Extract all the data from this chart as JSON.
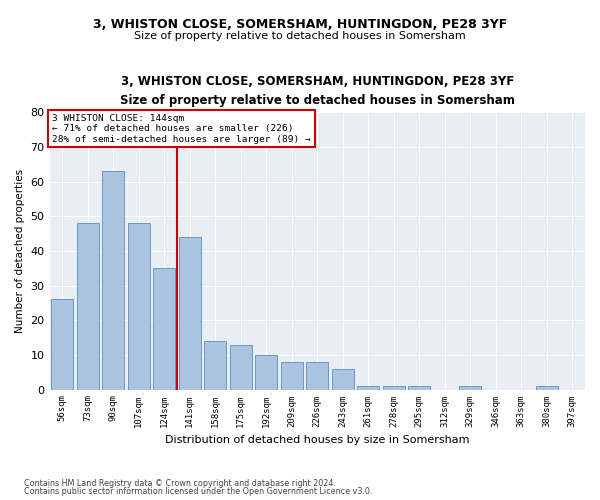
{
  "title1": "3, WHISTON CLOSE, SOMERSHAM, HUNTINGDON, PE28 3YF",
  "title2": "Size of property relative to detached houses in Somersham",
  "xlabel": "Distribution of detached houses by size in Somersham",
  "ylabel": "Number of detached properties",
  "footer1": "Contains HM Land Registry data © Crown copyright and database right 2024.",
  "footer2": "Contains public sector information licensed under the Open Government Licence v3.0.",
  "property_label": "3 WHISTON CLOSE: 144sqm",
  "annotation_line1": "← 71% of detached houses are smaller (226)",
  "annotation_line2": "28% of semi-detached houses are larger (89) →",
  "categories": [
    "56sqm",
    "73sqm",
    "90sqm",
    "107sqm",
    "124sqm",
    "141sqm",
    "158sqm",
    "175sqm",
    "192sqm",
    "209sqm",
    "226sqm",
    "243sqm",
    "261sqm",
    "278sqm",
    "295sqm",
    "312sqm",
    "329sqm",
    "346sqm",
    "363sqm",
    "380sqm",
    "397sqm"
  ],
  "values": [
    26,
    48,
    63,
    48,
    35,
    44,
    14,
    13,
    10,
    8,
    8,
    6,
    1,
    1,
    1,
    0,
    1,
    0,
    0,
    1,
    0
  ],
  "bar_color": "#aac4e0",
  "bar_edge_color": "#5a8fc0",
  "vline_index": 5,
  "vline_color": "#cc0000",
  "annotation_box_color": "#cc0000",
  "background_color": "#e8eef4",
  "ylim": [
    0,
    80
  ],
  "yticks": [
    0,
    10,
    20,
    30,
    40,
    50,
    60,
    70,
    80
  ]
}
